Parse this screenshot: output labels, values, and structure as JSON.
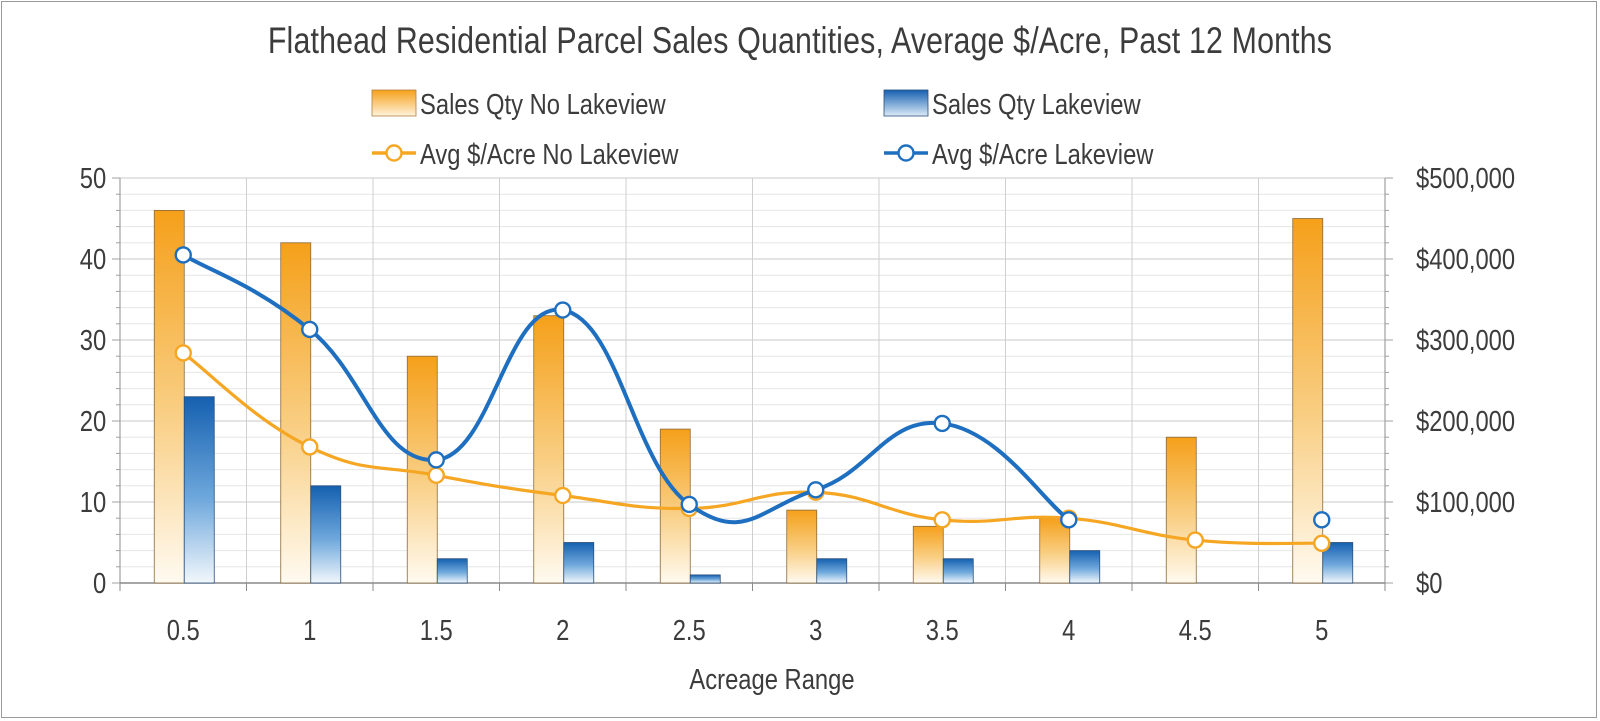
{
  "chart_data": {
    "type": "bar",
    "title": "Flathead Residential Parcel Sales Quantities, Average $/Acre, Past 12 Months",
    "xlabel": "Acreage Range",
    "ylabel": "",
    "y2label": "",
    "categories": [
      "0.5",
      "1",
      "1.5",
      "2",
      "2.5",
      "3",
      "3.5",
      "4",
      "4.5",
      "5"
    ],
    "ylim": [
      0,
      50
    ],
    "y_ticks": [
      "0",
      "10",
      "20",
      "30",
      "40",
      "50"
    ],
    "y2lim": [
      0,
      500000
    ],
    "y2_ticks": [
      "$0",
      "$100,000",
      "$200,000",
      "$300,000",
      "$400,000",
      "$500,000"
    ],
    "grid": true,
    "legend_position": "top",
    "series": [
      {
        "name": "Sales Qty No Lakeview",
        "type": "bar",
        "axis": "left",
        "color": "#f5a623",
        "values": [
          46,
          42,
          28,
          33,
          19,
          9,
          7,
          8,
          18,
          45
        ]
      },
      {
        "name": "Sales Qty Lakeview",
        "type": "bar",
        "axis": "left",
        "color": "#1f6fc0",
        "values": [
          23,
          12,
          3,
          5,
          1,
          3,
          3,
          4,
          0,
          5
        ]
      },
      {
        "name": "Avg $/Acre No Lakeview",
        "type": "line",
        "axis": "right",
        "color": "#f5a623",
        "values": [
          284000,
          168000,
          133000,
          108000,
          92000,
          112000,
          78000,
          80000,
          53000,
          49000
        ]
      },
      {
        "name": "Avg $/Acre Lakeview",
        "type": "line",
        "axis": "right",
        "color": "#1f6fc0",
        "values": [
          405000,
          313000,
          152000,
          337000,
          97000,
          115000,
          197000,
          78000,
          null,
          78000
        ]
      }
    ]
  }
}
